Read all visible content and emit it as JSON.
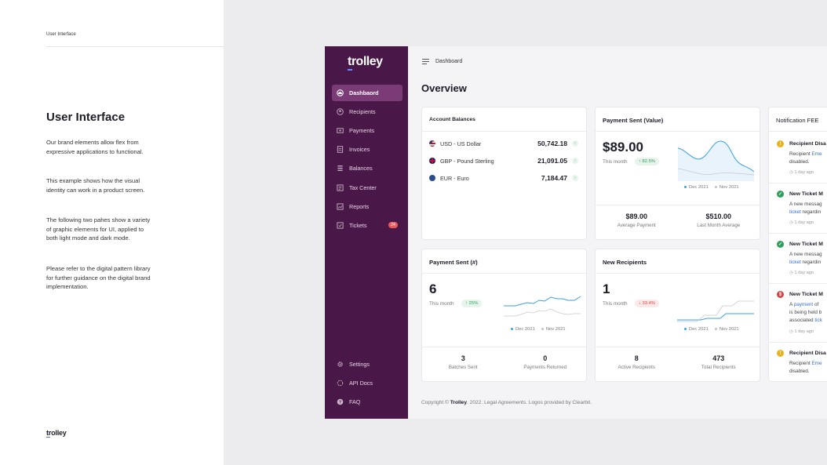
{
  "left_panel": {
    "label": "User Interface",
    "title": "User Interface",
    "paragraphs": [
      "Our brand elements allow flex from expressive applications to functional.",
      "This example shows how the visual identity can work in a product screen.",
      "The following two pahes show a variety of graphic elements for UI, applied to both light mode and dark mode.",
      "Please refer to the digital pattern library for further guidance on the digital brand implementation."
    ],
    "logo": "trolley"
  },
  "app": {
    "logo": "trolley",
    "nav": [
      {
        "label": "Dashbaord",
        "icon": "dashboard-icon",
        "active": true
      },
      {
        "label": "Recipients",
        "icon": "recipients-icon"
      },
      {
        "label": "Payments",
        "icon": "payments-icon"
      },
      {
        "label": "Invoices",
        "icon": "invoices-icon"
      },
      {
        "label": "Balances",
        "icon": "balances-icon"
      },
      {
        "label": "Tax Center",
        "icon": "tax-center-icon"
      },
      {
        "label": "Reports",
        "icon": "reports-icon"
      },
      {
        "label": "Tickets",
        "icon": "tickets-icon",
        "badge": "24"
      }
    ],
    "nav_bottom": [
      {
        "label": "Settings",
        "icon": "gear-icon"
      },
      {
        "label": "API Docs",
        "icon": "api-docs-icon"
      },
      {
        "label": "FAQ",
        "icon": "help-icon"
      }
    ],
    "breadcrumb": "Dashboard",
    "page_title": "Overview",
    "account_balances": {
      "title": "Account Balances",
      "rows": [
        {
          "currency": "USD - US Dollar",
          "value": "50,742.18",
          "flag": "us-flag-icon"
        },
        {
          "currency": "GBP - Pound Sterling",
          "value": "21,091.05",
          "flag": "uk-flag-icon"
        },
        {
          "currency": "EUR - Euro",
          "value": "7,184.47",
          "flag": "eu-flag-icon"
        }
      ]
    },
    "payment_value": {
      "title": "Payment Sent (Value)",
      "value": "$89.00",
      "period": "This month",
      "change": "↑ 82.5%",
      "legend_current": "Dec 2021",
      "legend_previous": "Nov 2021",
      "avg_value": "$89.00",
      "avg_label": "Average Payment",
      "last_value": "$510.00",
      "last_label": "Last Month Average"
    },
    "payment_count": {
      "title": "Payment Sent (#)",
      "value": "6",
      "period": "This month",
      "change": "↑ 25%",
      "legend_current": "Dec 2021",
      "legend_previous": "Nov 2021",
      "batches_value": "3",
      "batches_label": "Batches Sent",
      "returned_value": "0",
      "returned_label": "Payments Returned"
    },
    "new_recipients": {
      "title": "New Recipients",
      "value": "1",
      "period": "This month",
      "change": "↓ 33.4%",
      "legend_current": "Dec 2021",
      "legend_previous": "Nov 2021",
      "active_value": "8",
      "active_label": "Active Recipients",
      "total_value": "473",
      "total_label": "Total Recipients"
    },
    "notifications": {
      "title": "Notification FEE",
      "items": [
        {
          "title": "Recipient Disa",
          "body_a": "Recipient ",
          "link": "Eme",
          "body_b": "",
          "body_c": "disabled.",
          "time": "1 day ago",
          "type": "warning"
        },
        {
          "title": "New Ticket M",
          "body_a": "A new messag",
          "link": "ticket",
          "body_b": " regardin",
          "body_c": "",
          "time": "1 day ago",
          "type": "success"
        },
        {
          "title": "New Ticket M",
          "body_a": "A new messag",
          "link": "ticket",
          "body_b": " regardin",
          "body_c": "",
          "time": "1 day ago",
          "type": "success"
        },
        {
          "title": "New Ticket M",
          "body_a": "A ",
          "link": "payment",
          "body_b": " of",
          "body_c": "is being held b",
          "body_d": "associated ",
          "link2": "tick",
          "time": "1 day ago",
          "type": "error"
        },
        {
          "title": "Recipient Disa",
          "body_a": "Recipient ",
          "link": "Eme",
          "body_b": "",
          "body_c": "disabled.",
          "time": "",
          "type": "warning"
        }
      ]
    },
    "copyright": {
      "prefix": "Copyright © ",
      "brand": "Trolley",
      "suffix": ". 2022. Legal Agreements. Logos provided by Clearbit."
    }
  },
  "colors": {
    "sidebar": "#4a1848",
    "sidebar_active": "#7a3b76",
    "accent_blue": "#3aa0e0",
    "positive": "#2e9e5b",
    "negative": "#d04545",
    "warning": "#e8b21f"
  }
}
